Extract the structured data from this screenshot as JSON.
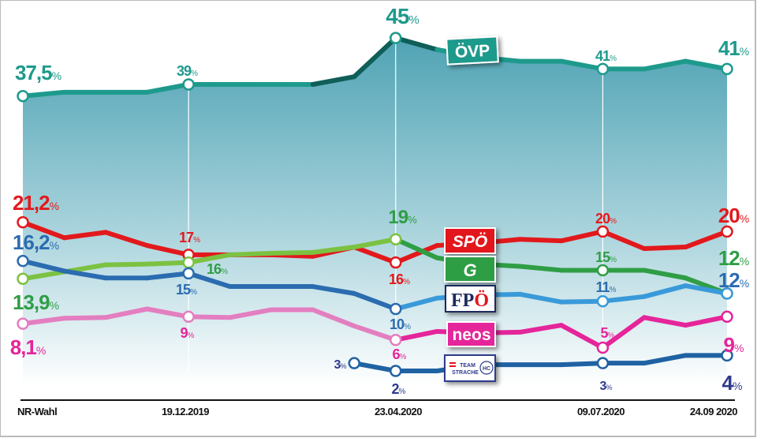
{
  "chart_data": {
    "type": "line",
    "x_labels": [
      {
        "index": 0,
        "text": "NR-Wahl"
      },
      {
        "index": 4,
        "text": "19.12.2019"
      },
      {
        "index": 9,
        "text": "23.04.2020"
      },
      {
        "index": 14,
        "text": "09.07.2020"
      },
      {
        "index": 17,
        "text": "24.09 2020"
      }
    ],
    "point_count": 18,
    "ylim": [
      0,
      46
    ],
    "ylabel": "%",
    "grid": false,
    "legend": "inline logos",
    "series": [
      {
        "name": "ÖVP",
        "key": "oevp",
        "color": "#1e9a8c",
        "area": true,
        "values": [
          37.5,
          38,
          38,
          38,
          39,
          39,
          39,
          39,
          40,
          45,
          43.5,
          42.5,
          42,
          42,
          41,
          41,
          42,
          41
        ],
        "labels": [
          {
            "index": 0,
            "text": "37,5%"
          },
          {
            "index": 4,
            "text": "39%"
          },
          {
            "index": 9,
            "text": "45%"
          },
          {
            "index": 14,
            "text": "41%"
          },
          {
            "index": 17,
            "text": "41%"
          }
        ]
      },
      {
        "name": "SPÖ",
        "key": "spoe",
        "color": "#e2191c",
        "values": [
          21.2,
          19.2,
          19.9,
          18.2,
          17,
          17,
          17,
          16.8,
          18,
          16,
          18.2,
          18.5,
          19,
          18.8,
          20,
          17.8,
          18,
          20
        ],
        "labels": [
          {
            "index": 0,
            "text": "21,2%"
          },
          {
            "index": 4,
            "text": "17%"
          },
          {
            "index": 9,
            "text": "16%"
          },
          {
            "index": 14,
            "text": "20%"
          },
          {
            "index": 17,
            "text": "20%"
          }
        ]
      },
      {
        "name": "Grüne",
        "key": "gruene",
        "color": "#2f9e45",
        "color_early": "#7cc242",
        "values": [
          13.9,
          14.8,
          15.7,
          15.8,
          16,
          17,
          17.2,
          17.3,
          18,
          19,
          16.6,
          15.8,
          15.5,
          15,
          15,
          15,
          14,
          12
        ],
        "labels": [
          {
            "index": 0,
            "text": "13,9%"
          },
          {
            "index": 4,
            "text": "16%"
          },
          {
            "index": 9,
            "text": "19%"
          },
          {
            "index": 14,
            "text": "15%"
          },
          {
            "index": 17,
            "text": "12%"
          }
        ]
      },
      {
        "name": "FPÖ",
        "key": "fpoe",
        "color": "#3a9ad9",
        "color_early": "#2b6cb0",
        "values": [
          16.2,
          14.9,
          14,
          14,
          14.6,
          12.9,
          12.9,
          12.9,
          12,
          10,
          11.4,
          11.8,
          11.9,
          10.9,
          11,
          11.6,
          13,
          12
        ],
        "labels": [
          {
            "index": 0,
            "text": "16,2%"
          },
          {
            "index": 4,
            "text": "15%"
          },
          {
            "index": 9,
            "text": "10%"
          },
          {
            "index": 14,
            "text": "11%"
          },
          {
            "index": 17,
            "text": "12%"
          }
        ]
      },
      {
        "name": "NEOS",
        "key": "neos",
        "color": "#e5259a",
        "color_early": "#e37fc0",
        "values": [
          8.1,
          8.8,
          8.9,
          10,
          9,
          8.9,
          9.9,
          9.9,
          7.8,
          6,
          7.1,
          6.9,
          7,
          7.9,
          5,
          8.9,
          7.9,
          9
        ],
        "labels": [
          {
            "index": 0,
            "text": "8,1%"
          },
          {
            "index": 4,
            "text": "9%"
          },
          {
            "index": 9,
            "text": "6%"
          },
          {
            "index": 14,
            "text": "5%"
          },
          {
            "index": 17,
            "text": "9%"
          }
        ]
      },
      {
        "name": "Team Strache",
        "key": "hc",
        "color": "#1f62a3",
        "label_color": "#2e3a8c",
        "values": [
          null,
          null,
          null,
          null,
          null,
          null,
          null,
          null,
          3,
          2,
          2,
          2.8,
          2.8,
          2.8,
          3,
          3,
          4,
          4
        ],
        "labels": [
          {
            "index": 8,
            "text": "3%"
          },
          {
            "index": 9,
            "text": "2%"
          },
          {
            "index": 14,
            "text": "3%"
          },
          {
            "index": 17,
            "text": "4%"
          }
        ]
      }
    ],
    "logos": {
      "oevp": "ÖVP",
      "spoe": "SPÖ",
      "gruene": "G",
      "fpoe_a": "FP",
      "fpoe_b": "Ö",
      "neos": "neos",
      "hc_a": "TEAM",
      "hc_b": "STRACHE",
      "hc_c": "HC"
    }
  }
}
